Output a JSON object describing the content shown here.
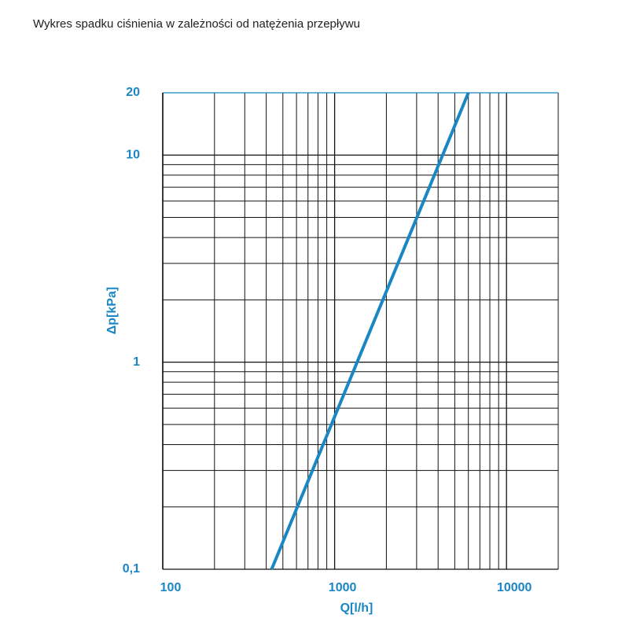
{
  "header": {
    "title": "Wykres spadku ciśnienia w zależności od natężenia przepływu"
  },
  "chart_data": {
    "type": "line",
    "xlabel": "Q[l/h]",
    "ylabel": "Δp[kPa]",
    "xscale": "log",
    "yscale": "log",
    "xlim": [
      100,
      20000
    ],
    "ylim": [
      0.1,
      20
    ],
    "xticks": [
      100,
      1000,
      10000
    ],
    "yticks": [
      {
        "value": 0.1,
        "label": "0,1"
      },
      1,
      10,
      20
    ],
    "xgrid": [
      200,
      300,
      400,
      500,
      600,
      700,
      800,
      900,
      2000,
      3000,
      4000,
      5000,
      6000,
      7000,
      8000,
      9000,
      20000
    ],
    "ygrid": [
      0.2,
      0.3,
      0.4,
      0.5,
      0.6,
      0.7,
      0.8,
      0.9,
      2,
      3,
      4,
      5,
      6,
      7,
      8,
      9
    ],
    "grid": true,
    "label_color": "#1a86c4",
    "series": [
      {
        "color": "#1a86c4",
        "x": [
          430,
          6000
        ],
        "values": [
          0.1,
          20
        ]
      }
    ]
  }
}
